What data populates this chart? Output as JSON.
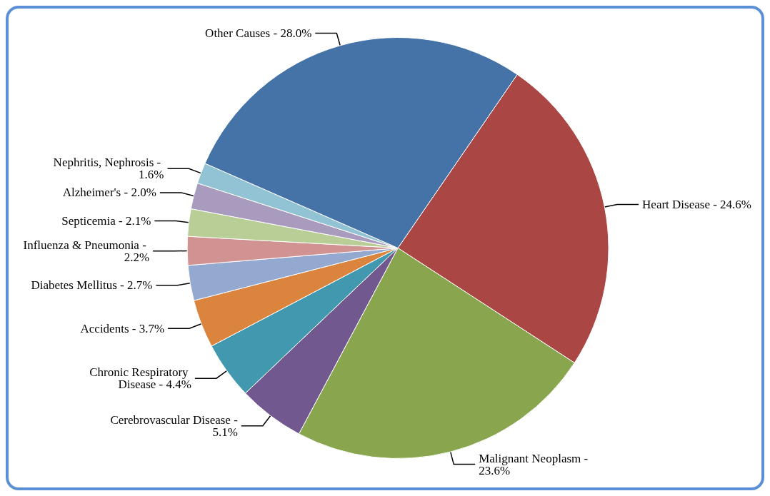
{
  "chart_data": {
    "type": "pie",
    "categories": [
      "Heart Disease -",
      "Malignant Neoplasm -",
      "Cerebrovascular Disease -",
      "Chronic Respiratory Disease -",
      "Accidents -",
      "Diabetes Mellitus -",
      "Influenza & Pneumonia -",
      "Septicemia -",
      "Alzheimer's -",
      "Nephritis, Nephrosis -",
      "Other Causes -"
    ],
    "values": [
      24.6,
      23.6,
      5.1,
      4.4,
      3.7,
      2.7,
      2.2,
      2.1,
      2.0,
      1.6,
      28.0
    ],
    "value_labels": [
      "24.6%",
      "23.6%",
      "5.1%",
      "4.4%",
      "3.7%",
      "2.7%",
      "2.2%",
      "2.1%",
      "2.0%",
      "1.6%",
      "28.0%"
    ],
    "colors": [
      "#aa4643",
      "#89a54e",
      "#71588f",
      "#4198af",
      "#db843d",
      "#93a9cf",
      "#d19392",
      "#b9cd96",
      "#a99bbd",
      "#92c3d4",
      "#4572a7"
    ]
  }
}
